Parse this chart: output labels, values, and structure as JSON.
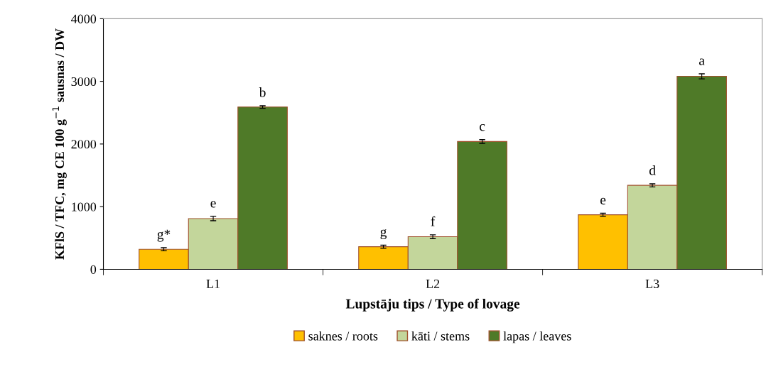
{
  "chart_data": {
    "type": "bar",
    "xlabel": "Lupstāju tips / Type of lovage",
    "ylabel": "KFlS / TFC, mg CE 100 g$^{−1}$ sausnas / DW",
    "categories": [
      "L1",
      "L2",
      "L3"
    ],
    "series": [
      {
        "name": "saknes / roots",
        "color": "#ffc000",
        "values": [
          320,
          360,
          870
        ],
        "errors": [
          25,
          25,
          25
        ]
      },
      {
        "name": "kāti / stems",
        "color": "#c3d69b",
        "values": [
          810,
          520,
          1340
        ],
        "errors": [
          35,
          30,
          25
        ]
      },
      {
        "name": "lapas / leaves",
        "color": "#4f7a28",
        "values": [
          2590,
          2040,
          3080
        ],
        "errors": [
          20,
          30,
          40
        ]
      }
    ],
    "ylim": [
      0,
      4000
    ],
    "yticks": [
      0,
      1000,
      2000,
      3000,
      4000
    ],
    "grid": false,
    "legend": "bottom",
    "annotations": [
      "g*",
      "e",
      "b",
      "g",
      "f",
      "c",
      "e",
      "d",
      "a"
    ]
  }
}
